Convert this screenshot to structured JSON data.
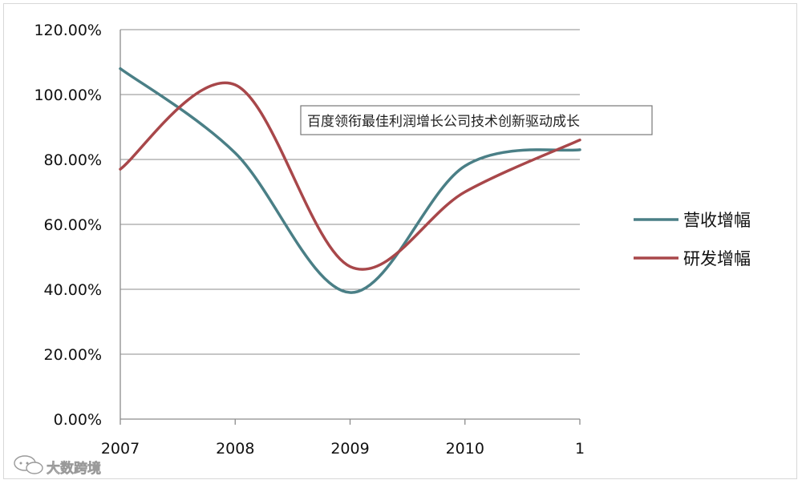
{
  "chart_data": {
    "type": "line",
    "categories": [
      "2007",
      "2008",
      "2009",
      "2010",
      "1"
    ],
    "x_tick_labels": [
      "2007",
      "2008",
      "2009",
      "2010",
      "1"
    ],
    "y_tick_labels": [
      "0.00%",
      "20.00%",
      "40.00%",
      "60.00%",
      "80.00%",
      "100.00%",
      "120.00%"
    ],
    "ylim": [
      0,
      120
    ],
    "grid": true,
    "legend": "right",
    "series": [
      {
        "name": "营收增幅",
        "color": "#4a7f86",
        "values": [
          108,
          82,
          39,
          78,
          83
        ]
      },
      {
        "name": "研发增幅",
        "color": "#a8474a",
        "values": [
          77,
          103,
          47,
          70,
          86
        ]
      }
    ],
    "annotation": "百度领衔最佳利润增长公司技术创新驱动成长"
  },
  "watermark": {
    "text": "大数跨境",
    "icon": "chat-bubble-icon"
  }
}
